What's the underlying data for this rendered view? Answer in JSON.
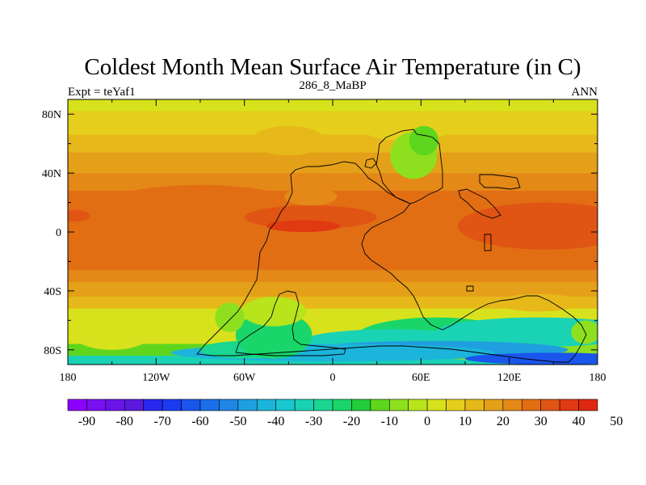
{
  "chart_data": {
    "type": "heatmap",
    "title": "Coldest Month Mean Surface Air Temperature (in C)",
    "subtitle_left": "Expt = teYaf1",
    "subtitle_center": "286_8_MaBP",
    "subtitle_right": "ANN",
    "xlabel": "",
    "ylabel": "",
    "x_ticks": [
      "180",
      "120W",
      "60W",
      "0",
      "60E",
      "120E",
      "180"
    ],
    "x_tick_values": [
      -180,
      -120,
      -60,
      0,
      60,
      120,
      180
    ],
    "y_ticks": [
      "80N",
      "40N",
      "0",
      "40S",
      "80S"
    ],
    "y_tick_values": [
      80,
      40,
      0,
      -40,
      -80
    ],
    "xlim": [
      -180,
      180
    ],
    "ylim": [
      -90,
      90
    ],
    "colorbar": {
      "labels": [
        "-90",
        "-80",
        "-70",
        "-60",
        "-50",
        "-40",
        "-30",
        "-20",
        "-10",
        "0",
        "10",
        "20",
        "30",
        "40",
        "50"
      ],
      "label_values": [
        -90,
        -80,
        -70,
        -60,
        -50,
        -40,
        -30,
        -20,
        -10,
        0,
        10,
        20,
        30,
        40,
        50
      ],
      "levels_start": -95,
      "level_step": 5,
      "colors": [
        "#8c00ff",
        "#7a0ff2",
        "#6a14e8",
        "#5a19dc",
        "#2828ee",
        "#1a3cf0",
        "#1a55ec",
        "#1a6ee8",
        "#1f86e4",
        "#1f9fe0",
        "#1cb4da",
        "#1ac6d0",
        "#1ad2b4",
        "#1ad690",
        "#1ad66a",
        "#22cc3c",
        "#5ed61e",
        "#8ee01e",
        "#b8e41c",
        "#d8e21c",
        "#e6cf1c",
        "#e6b81a",
        "#e4a018",
        "#e48818",
        "#e26e14",
        "#e05414",
        "#e03a12",
        "#de2810"
      ]
    },
    "grid": false,
    "legend": "bottom"
  }
}
